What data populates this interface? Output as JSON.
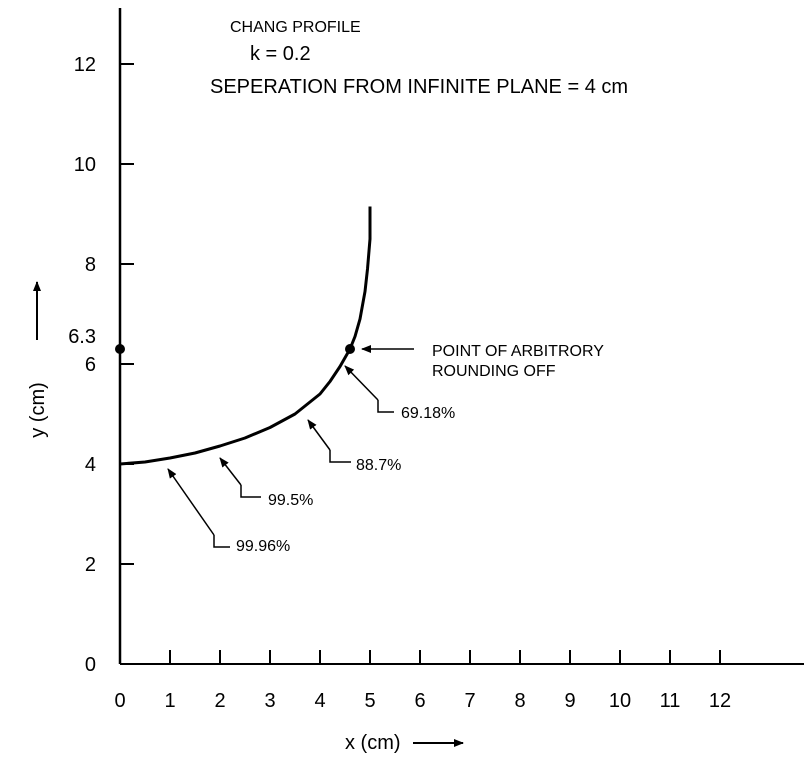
{
  "chart_data": {
    "type": "line",
    "title": "CHANG PROFILE",
    "subtitle": "k = 0.2",
    "subtitle2": "SEPERATION FROM INFINITE PLANE = 4 cm",
    "xlabel": "x (cm)",
    "ylabel": "y (cm)",
    "xlim": [
      0,
      13.7
    ],
    "ylim": [
      0,
      13.2
    ],
    "xticks": [
      0,
      1,
      2,
      3,
      4,
      5,
      6,
      7,
      8,
      9,
      10,
      11,
      12
    ],
    "yticks": [
      0,
      2,
      4,
      6,
      8,
      10,
      12
    ],
    "yticks_extra_label": "6.3",
    "grid": false,
    "series": [
      {
        "x": [
          0,
          0.5,
          1.0,
          1.5,
          2.0,
          2.5,
          3.0,
          3.5,
          4.0,
          4.2,
          4.4,
          4.6,
          4.7,
          4.8,
          4.9,
          4.95,
          5.0,
          5.0
        ],
        "y": [
          4.0,
          4.04,
          4.12,
          4.22,
          4.36,
          4.52,
          4.73,
          5.0,
          5.4,
          5.65,
          5.95,
          6.3,
          6.55,
          6.9,
          7.45,
          7.9,
          8.5,
          9.15
        ]
      }
    ],
    "markers": [
      {
        "x": 0,
        "y": 6.3
      },
      {
        "x": 4.6,
        "y": 6.3
      }
    ],
    "annotations": [
      {
        "text": "POINT OF ARBITRORY",
        "text2": "ROUNDING OFF",
        "x": 4.6,
        "y": 6.3
      },
      {
        "text": "69.18%",
        "x": 4.55,
        "y": 6.1
      },
      {
        "text": "88.7%",
        "x": 3.85,
        "y": 4.9
      },
      {
        "text": "99.5%",
        "x": 1.95,
        "y": 4.2
      },
      {
        "text": "99.96%",
        "x": 0.95,
        "y": 4.0
      }
    ]
  }
}
